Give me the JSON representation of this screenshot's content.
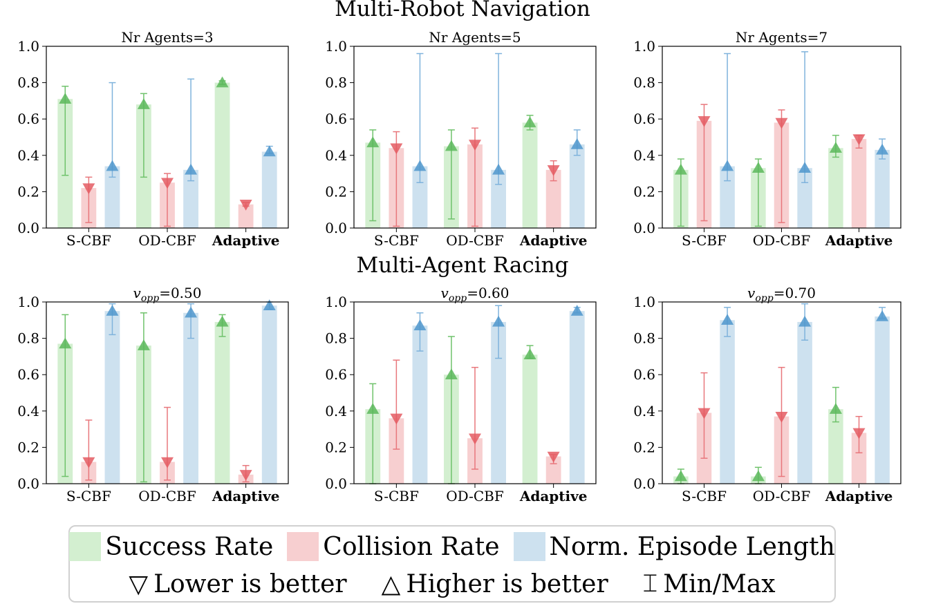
{
  "section_titles": {
    "navigation": "Multi-Robot Navigation",
    "racing": "Multi-Agent Racing"
  },
  "legend": {
    "series": [
      {
        "label": "Success Rate",
        "color": "#d3efd0"
      },
      {
        "label": "Collision Rate",
        "color": "#f7cfd0"
      },
      {
        "label": "Norm. Episode Length",
        "color": "#cde1ef"
      }
    ],
    "notes": [
      {
        "glyph": "▽",
        "text": "Lower is better"
      },
      {
        "glyph": "△",
        "text": "Higher is better"
      },
      {
        "glyph": "⌶",
        "text": "Min/Max"
      }
    ]
  },
  "colors": {
    "bars": [
      "#d3efd0",
      "#f7cfd0",
      "#cde1ef"
    ],
    "markers": [
      "#5cb85c",
      "#e45b61",
      "#4f96cc"
    ],
    "whiskers": [
      "#6fc26b",
      "#e8777c",
      "#7fb3dc"
    ]
  },
  "chart_data": [
    {
      "type": "bar",
      "title": "Nr Agents=3",
      "categories": [
        "S-CBF",
        "OD-CBF",
        "Adaptive"
      ],
      "bold_category": "Adaptive",
      "ylim": [
        0,
        1
      ],
      "yticks": [
        "0.0",
        "0.2",
        "0.4",
        "0.6",
        "0.8",
        "1.0"
      ],
      "series": [
        {
          "metric": "success",
          "direction": "up",
          "values": [
            0.71,
            0.68,
            0.8
          ],
          "min": [
            0.29,
            0.28,
            0.79
          ],
          "max": [
            0.78,
            0.74,
            0.81
          ]
        },
        {
          "metric": "collision",
          "direction": "down",
          "values": [
            0.22,
            0.25,
            0.13
          ],
          "min": [
            0.03,
            0.01,
            0.12
          ],
          "max": [
            0.28,
            0.3,
            0.14
          ]
        },
        {
          "metric": "length",
          "direction": "up",
          "values": [
            0.34,
            0.32,
            0.42
          ],
          "min": [
            0.28,
            0.26,
            0.41
          ],
          "max": [
            0.8,
            0.82,
            0.45
          ]
        }
      ]
    },
    {
      "type": "bar",
      "title": "Nr Agents=5",
      "categories": [
        "S-CBF",
        "OD-CBF",
        "Adaptive"
      ],
      "bold_category": "Adaptive",
      "ylim": [
        0,
        1
      ],
      "yticks": [
        "0.0",
        "0.2",
        "0.4",
        "0.6",
        "0.8",
        "1.0"
      ],
      "series": [
        {
          "metric": "success",
          "direction": "up",
          "values": [
            0.47,
            0.45,
            0.58
          ],
          "min": [
            0.04,
            0.05,
            0.54
          ],
          "max": [
            0.54,
            0.54,
            0.62
          ]
        },
        {
          "metric": "collision",
          "direction": "down",
          "values": [
            0.44,
            0.46,
            0.32
          ],
          "min": [
            0.01,
            0.01,
            0.26
          ],
          "max": [
            0.53,
            0.55,
            0.37
          ]
        },
        {
          "metric": "length",
          "direction": "up",
          "values": [
            0.34,
            0.32,
            0.46
          ],
          "min": [
            0.25,
            0.24,
            0.4
          ],
          "max": [
            0.96,
            0.96,
            0.54
          ]
        }
      ]
    },
    {
      "type": "bar",
      "title": "Nr Agents=7",
      "categories": [
        "S-CBF",
        "OD-CBF",
        "Adaptive"
      ],
      "bold_category": "Adaptive",
      "ylim": [
        0,
        1
      ],
      "yticks": [
        "0.0",
        "0.2",
        "0.4",
        "0.6",
        "0.8",
        "1.0"
      ],
      "series": [
        {
          "metric": "success",
          "direction": "up",
          "values": [
            0.32,
            0.33,
            0.44
          ],
          "min": [
            0.01,
            0.01,
            0.39
          ],
          "max": [
            0.38,
            0.38,
            0.51
          ]
        },
        {
          "metric": "collision",
          "direction": "down",
          "values": [
            0.59,
            0.58,
            0.49
          ],
          "min": [
            0.04,
            0.03,
            0.44
          ],
          "max": [
            0.68,
            0.65,
            0.51
          ]
        },
        {
          "metric": "length",
          "direction": "up",
          "values": [
            0.34,
            0.33,
            0.43
          ],
          "min": [
            0.26,
            0.25,
            0.38
          ],
          "max": [
            0.96,
            0.97,
            0.49
          ]
        }
      ]
    },
    {
      "type": "bar",
      "title": "v_opp=0.50",
      "title_var": "v",
      "title_sub": "opp",
      "title_rest": "=0.50",
      "categories": [
        "S-CBF",
        "OD-CBF",
        "Adaptive"
      ],
      "bold_category": "Adaptive",
      "ylim": [
        0,
        1
      ],
      "yticks": [
        "0.0",
        "0.2",
        "0.4",
        "0.6",
        "0.8",
        "1.0"
      ],
      "series": [
        {
          "metric": "success",
          "direction": "up",
          "values": [
            0.77,
            0.76,
            0.89
          ],
          "min": [
            0.04,
            0.01,
            0.81
          ],
          "max": [
            0.93,
            0.94,
            0.93
          ]
        },
        {
          "metric": "collision",
          "direction": "down",
          "values": [
            0.12,
            0.12,
            0.05
          ],
          "min": [
            0.02,
            0.02,
            0.01
          ],
          "max": [
            0.35,
            0.42,
            0.1
          ]
        },
        {
          "metric": "length",
          "direction": "up",
          "values": [
            0.95,
            0.94,
            0.98
          ],
          "min": [
            0.82,
            0.8,
            0.96
          ],
          "max": [
            0.99,
            0.99,
            1.0
          ]
        }
      ]
    },
    {
      "type": "bar",
      "title": "v_opp=0.60",
      "title_var": "v",
      "title_sub": "opp",
      "title_rest": "=0.60",
      "categories": [
        "S-CBF",
        "OD-CBF",
        "Adaptive"
      ],
      "bold_category": "Adaptive",
      "ylim": [
        0,
        1
      ],
      "yticks": [
        "0.0",
        "0.2",
        "0.4",
        "0.6",
        "0.8",
        "1.0"
      ],
      "series": [
        {
          "metric": "success",
          "direction": "up",
          "values": [
            0.41,
            0.6,
            0.71
          ],
          "min": [
            0.0,
            0.0,
            0.69
          ],
          "max": [
            0.55,
            0.81,
            0.76
          ]
        },
        {
          "metric": "collision",
          "direction": "down",
          "values": [
            0.36,
            0.25,
            0.15
          ],
          "min": [
            0.19,
            0.08,
            0.11
          ],
          "max": [
            0.68,
            0.64,
            0.16
          ]
        },
        {
          "metric": "length",
          "direction": "up",
          "values": [
            0.87,
            0.89,
            0.95
          ],
          "min": [
            0.73,
            0.69,
            0.94
          ],
          "max": [
            0.94,
            0.98,
            0.97
          ]
        }
      ]
    },
    {
      "type": "bar",
      "title": "v_opp=0.70",
      "title_var": "v",
      "title_sub": "opp",
      "title_rest": "=0.70",
      "categories": [
        "S-CBF",
        "OD-CBF",
        "Adaptive"
      ],
      "bold_category": "Adaptive",
      "ylim": [
        0,
        1
      ],
      "yticks": [
        "0.0",
        "0.2",
        "0.4",
        "0.6",
        "0.8",
        "1.0"
      ],
      "series": [
        {
          "metric": "success",
          "direction": "up",
          "values": [
            0.04,
            0.04,
            0.41
          ],
          "min": [
            0.0,
            0.0,
            0.34
          ],
          "max": [
            0.08,
            0.09,
            0.53
          ]
        },
        {
          "metric": "collision",
          "direction": "down",
          "values": [
            0.39,
            0.37,
            0.28
          ],
          "min": [
            0.14,
            0.04,
            0.17
          ],
          "max": [
            0.61,
            0.64,
            0.37
          ]
        },
        {
          "metric": "length",
          "direction": "up",
          "values": [
            0.9,
            0.89,
            0.92
          ],
          "min": [
            0.81,
            0.79,
            0.91
          ],
          "max": [
            0.97,
            0.99,
            0.97
          ]
        }
      ]
    }
  ]
}
